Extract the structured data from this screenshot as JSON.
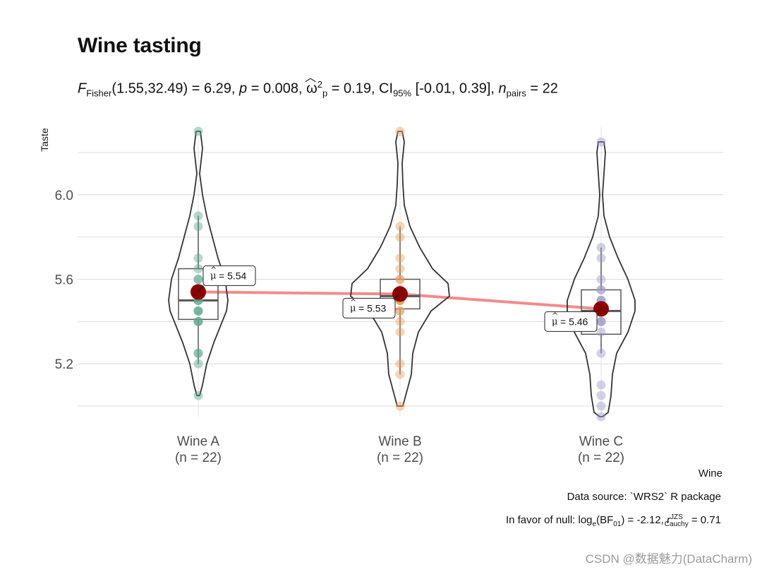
{
  "title": "Wine tasting",
  "subtitle": {
    "f_label": "F",
    "f_sub": "Fisher",
    "f_value": "(1.55,32.49) = 6.29, ",
    "p_label": "p",
    "p_value": " = 0.008, ",
    "omega_symbol": "ω",
    "omega_sup": "2",
    "omega_sub": "p",
    "omega_value": " = 0.19, CI",
    "ci_sub": "95%",
    "ci_value": " [-0.01, 0.39], ",
    "n_label": "n",
    "n_sub": "pairs",
    "n_value": " = 22"
  },
  "caption": {
    "source": "Data source: `WRS2` R package",
    "bf_prefix": "In favor of null: log",
    "bf_e": "e",
    "bf_mid": "(BF",
    "bf_01": "01",
    "bf_value": ") = -2.12, ",
    "r_label": "r",
    "r_sup": "JZS",
    "r_sub": "Cauchy",
    "r_value": " = 0.71"
  },
  "watermark": "CSDN @数据魅力(DataCharm)",
  "chart_data": {
    "type": "violin-box-scatter",
    "xlabel": "Wine",
    "ylabel": "Taste",
    "ylim": [
      4.95,
      6.32
    ],
    "yticks": [
      5.2,
      5.6,
      6.0
    ],
    "grid": true,
    "mean_line_color": "#f08080",
    "mean_point_color": "#8b0000",
    "groups": [
      {
        "name": "Wine A",
        "n_label": "(n = 22)",
        "color": "#5aa98c",
        "mean": 5.54,
        "mean_label": "= 5.54",
        "box": {
          "q1": 5.41,
          "median": 5.5,
          "q3": 5.65,
          "lower": 5.2,
          "upper": 5.9
        },
        "points": [
          6.3,
          5.9,
          5.85,
          5.7,
          5.65,
          5.6,
          5.55,
          5.5,
          5.5,
          5.45,
          5.45,
          5.4,
          5.4,
          5.4,
          5.25,
          5.25,
          5.2,
          5.05,
          5.55,
          5.6,
          5.5,
          5.45
        ]
      },
      {
        "name": "Wine B",
        "n_label": "(n = 22)",
        "color": "#e8a060",
        "mean": 5.53,
        "mean_label": "= 5.53",
        "box": {
          "q1": 5.46,
          "median": 5.52,
          "q3": 5.6,
          "lower": 5.15,
          "upper": 5.85
        },
        "points": [
          6.3,
          5.85,
          5.8,
          5.7,
          5.65,
          5.6,
          5.55,
          5.5,
          5.5,
          5.45,
          5.4,
          5.35,
          5.2,
          5.15,
          5.0,
          5.55,
          5.5,
          5.55,
          5.6,
          5.5,
          5.45,
          5.5
        ]
      },
      {
        "name": "Wine C",
        "n_label": "(n = 22)",
        "color": "#9d9ac8",
        "mean": 5.46,
        "mean_label": "= 5.46",
        "box": {
          "q1": 5.34,
          "median": 5.45,
          "q3": 5.55,
          "lower": 5.25,
          "upper": 5.75
        },
        "points": [
          6.25,
          5.75,
          5.7,
          5.6,
          5.55,
          5.5,
          5.45,
          5.45,
          5.4,
          5.4,
          5.35,
          5.25,
          5.1,
          5.05,
          5.0,
          4.95,
          5.5,
          5.45,
          5.5,
          5.4,
          5.55,
          5.45
        ]
      }
    ]
  }
}
